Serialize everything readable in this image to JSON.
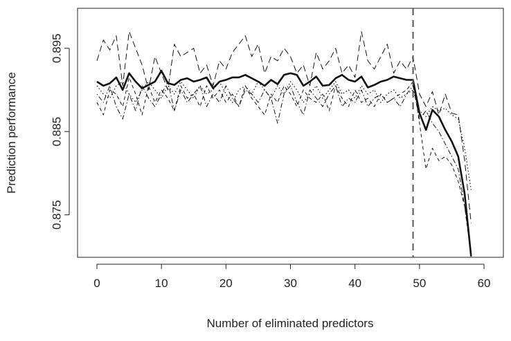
{
  "chart_data": {
    "type": "line",
    "title": "",
    "xlabel": "Number of eliminated predictors",
    "ylabel": "Prediction performance",
    "xlim": [
      -3,
      63
    ],
    "ylim": [
      0.8699,
      0.8998
    ],
    "x_ticks": [
      0,
      10,
      20,
      30,
      40,
      50,
      60
    ],
    "x_tick_labels": [
      "0",
      "10",
      "20",
      "30",
      "40",
      "50",
      "60"
    ],
    "y_ticks": [
      0.875,
      0.885,
      0.895
    ],
    "y_tick_labels": [
      "0.875",
      "0.885",
      "0.895"
    ],
    "grid": false,
    "legend": "none",
    "vline": {
      "x": 49,
      "style": "dashed"
    },
    "series": [
      {
        "style": "solid-bold",
        "x": [
          0,
          1,
          2,
          3,
          4,
          5,
          6,
          7,
          8,
          9,
          10,
          11,
          12,
          13,
          14,
          15,
          16,
          17,
          18,
          19,
          20,
          21,
          22,
          23,
          24,
          25,
          26,
          27,
          28,
          29,
          30,
          31,
          32,
          33,
          34,
          35,
          36,
          37,
          38,
          39,
          40,
          41,
          42,
          43,
          44,
          45,
          46,
          47,
          48,
          49,
          50,
          51,
          52,
          53,
          54,
          55,
          56,
          57,
          58
        ],
        "values": [
          0.891,
          0.8905,
          0.8908,
          0.8915,
          0.89,
          0.892,
          0.891,
          0.8902,
          0.8906,
          0.891,
          0.8923,
          0.8908,
          0.8906,
          0.8912,
          0.8914,
          0.891,
          0.8912,
          0.8915,
          0.8902,
          0.891,
          0.8912,
          0.8915,
          0.8915,
          0.8918,
          0.8914,
          0.891,
          0.8905,
          0.8912,
          0.8907,
          0.8918,
          0.892,
          0.8918,
          0.8905,
          0.891,
          0.8916,
          0.8905,
          0.8906,
          0.8914,
          0.8918,
          0.8912,
          0.891,
          0.8916,
          0.8903,
          0.8906,
          0.891,
          0.8912,
          0.8916,
          0.8914,
          0.8912,
          0.8912,
          0.8872,
          0.8852,
          0.8876,
          0.8868,
          0.8852,
          0.8838,
          0.882,
          0.8775,
          0.87
        ]
      },
      {
        "style": "long-dash",
        "x": [
          0,
          1,
          2,
          3,
          4,
          5,
          6,
          7,
          8,
          9,
          10,
          11,
          12,
          13,
          14,
          15,
          16,
          17,
          18,
          19,
          20,
          21,
          22,
          23,
          24,
          25,
          26,
          27,
          28,
          29,
          30,
          31,
          32,
          33,
          34,
          35,
          36,
          37,
          38,
          39,
          40,
          41,
          42,
          43,
          44,
          45,
          46,
          47,
          48,
          49,
          50,
          51,
          52,
          53,
          54,
          55,
          56,
          57,
          58
        ],
        "values": [
          0.8935,
          0.896,
          0.8948,
          0.8965,
          0.8905,
          0.897,
          0.895,
          0.893,
          0.89,
          0.894,
          0.892,
          0.89,
          0.8955,
          0.894,
          0.8945,
          0.895,
          0.892,
          0.893,
          0.8905,
          0.8935,
          0.8925,
          0.8945,
          0.8955,
          0.8965,
          0.894,
          0.8955,
          0.892,
          0.894,
          0.8935,
          0.895,
          0.894,
          0.892,
          0.893,
          0.8905,
          0.8945,
          0.8925,
          0.8935,
          0.895,
          0.892,
          0.893,
          0.8915,
          0.897,
          0.8935,
          0.8925,
          0.894,
          0.8955,
          0.892,
          0.8935,
          0.8925,
          0.894,
          0.8895,
          0.888,
          0.8898,
          0.887,
          0.8895,
          0.8872,
          0.887,
          0.8815,
          0.874
        ]
      },
      {
        "style": "short-dash",
        "x": [
          0,
          1,
          2,
          3,
          4,
          5,
          6,
          7,
          8,
          9,
          10,
          11,
          12,
          13,
          14,
          15,
          16,
          17,
          18,
          19,
          20,
          21,
          22,
          23,
          24,
          25,
          26,
          27,
          28,
          29,
          30,
          31,
          32,
          33,
          34,
          35,
          36,
          37,
          38,
          39,
          40,
          41,
          42,
          43,
          44,
          45,
          46,
          47,
          48,
          49,
          50,
          51,
          52,
          53,
          54,
          55,
          56,
          57,
          58
        ],
        "values": [
          0.8885,
          0.887,
          0.89,
          0.8895,
          0.888,
          0.8915,
          0.8895,
          0.887,
          0.8905,
          0.8885,
          0.89,
          0.889,
          0.8875,
          0.8905,
          0.889,
          0.8895,
          0.888,
          0.8905,
          0.889,
          0.89,
          0.8885,
          0.8895,
          0.888,
          0.8905,
          0.889,
          0.888,
          0.887,
          0.8895,
          0.8885,
          0.8905,
          0.8895,
          0.888,
          0.89,
          0.889,
          0.8885,
          0.8895,
          0.8875,
          0.8905,
          0.889,
          0.888,
          0.89,
          0.8885,
          0.889,
          0.888,
          0.8895,
          0.8885,
          0.889,
          0.8895,
          0.89,
          0.891,
          0.886,
          0.8805,
          0.883,
          0.8815,
          0.882,
          0.881,
          0.879,
          0.876,
          0.87
        ]
      },
      {
        "style": "dotted",
        "x": [
          0,
          1,
          2,
          3,
          4,
          5,
          6,
          7,
          8,
          9,
          10,
          11,
          12,
          13,
          14,
          15,
          16,
          17,
          18,
          19,
          20,
          21,
          22,
          23,
          24,
          25,
          26,
          27,
          28,
          29,
          30,
          31,
          32,
          33,
          34,
          35,
          36,
          37,
          38,
          39,
          40,
          41,
          42,
          43,
          44,
          45,
          46,
          47,
          48,
          49,
          50,
          51,
          52,
          53,
          54,
          55,
          56,
          57,
          58
        ],
        "values": [
          0.8905,
          0.8895,
          0.889,
          0.8905,
          0.891,
          0.8895,
          0.8885,
          0.89,
          0.891,
          0.89,
          0.889,
          0.8905,
          0.8895,
          0.891,
          0.89,
          0.889,
          0.8905,
          0.8895,
          0.89,
          0.891,
          0.8895,
          0.8885,
          0.89,
          0.8905,
          0.8895,
          0.891,
          0.89,
          0.889,
          0.8905,
          0.8895,
          0.891,
          0.89,
          0.8885,
          0.8895,
          0.8905,
          0.889,
          0.89,
          0.891,
          0.8895,
          0.89,
          0.889,
          0.8905,
          0.8895,
          0.89,
          0.8885,
          0.8895,
          0.89,
          0.889,
          0.8895,
          0.89,
          0.8875,
          0.8868,
          0.888,
          0.8875,
          0.8878,
          0.887,
          0.8865,
          0.883,
          0.878
        ]
      },
      {
        "style": "dot-dash",
        "x": [
          0,
          1,
          2,
          3,
          4,
          5,
          6,
          7,
          8,
          9,
          10,
          11,
          12,
          13,
          14,
          15,
          16,
          17,
          18,
          19,
          20,
          21,
          22,
          23,
          24,
          25,
          26,
          27,
          28,
          29,
          30,
          31,
          32,
          33,
          34,
          35,
          36,
          37,
          38,
          39,
          40,
          41,
          42,
          43,
          44,
          45,
          46,
          47,
          48,
          49,
          50,
          51,
          52,
          53,
          54,
          55,
          56,
          57,
          58
        ],
        "values": [
          0.8895,
          0.8885,
          0.8905,
          0.888,
          0.8865,
          0.8895,
          0.8875,
          0.8905,
          0.889,
          0.888,
          0.8895,
          0.891,
          0.8875,
          0.89,
          0.8885,
          0.8895,
          0.8905,
          0.888,
          0.8895,
          0.8885,
          0.8905,
          0.889,
          0.888,
          0.89,
          0.8895,
          0.8885,
          0.89,
          0.889,
          0.886,
          0.8895,
          0.8905,
          0.8885,
          0.887,
          0.89,
          0.889,
          0.888,
          0.8895,
          0.8905,
          0.888,
          0.889,
          0.8885,
          0.89,
          0.888,
          0.889,
          0.8895,
          0.8885,
          0.889,
          0.888,
          0.8895,
          0.8905,
          0.8865,
          0.8875,
          0.886,
          0.885,
          0.8835,
          0.882,
          0.8805,
          0.876,
          0.8705
        ]
      }
    ]
  }
}
